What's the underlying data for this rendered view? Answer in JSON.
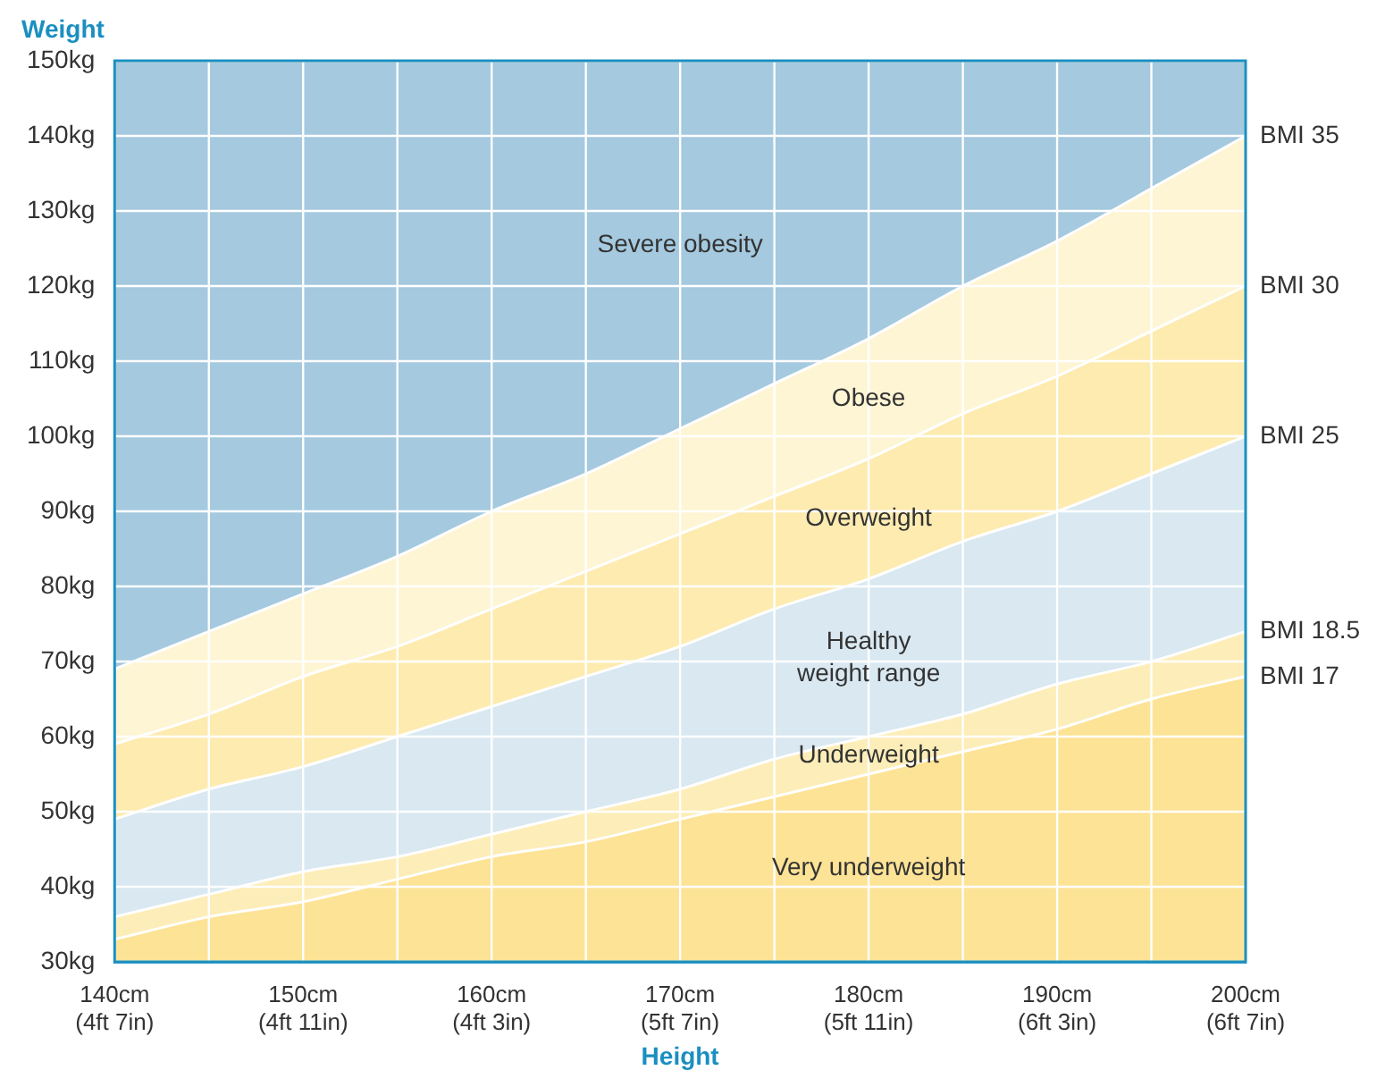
{
  "chart_data": {
    "type": "area",
    "ylabel": "Weight",
    "xlabel": "Height",
    "categories": [
      "140cm\n(4ft 7in)",
      null,
      "150cm\n(4ft 11in)",
      null,
      "160cm\n(4ft 3in)",
      null,
      "170cm\n(5ft 7in)",
      null,
      "180cm\n(5ft 11in)",
      null,
      "190cm\n(6ft 3in)",
      null,
      "200cm\n(6ft 7in)"
    ],
    "series": [
      {
        "name": "Very underweight",
        "color": "#fde396",
        "values": [
          33,
          36,
          38,
          41,
          44,
          46,
          49,
          52,
          55,
          58,
          61,
          65,
          68
        ]
      },
      {
        "name": "Underweight",
        "color": "#fdedb8",
        "values": [
          36,
          39,
          42,
          44,
          47,
          50,
          53,
          57,
          60,
          63,
          67,
          70,
          74
        ]
      },
      {
        "name": "Healthy weight range",
        "color": "#d9e8f1",
        "values": [
          49,
          53,
          56,
          60,
          64,
          68,
          72,
          77,
          81,
          86,
          90,
          95,
          100
        ]
      },
      {
        "name": "Overweight",
        "color": "#fdebb0",
        "values": [
          59,
          63,
          68,
          72,
          77,
          82,
          87,
          92,
          97,
          103,
          108,
          114,
          120
        ]
      },
      {
        "name": "Obese",
        "color": "#fef5d4",
        "values": [
          69,
          74,
          79,
          84,
          90,
          95,
          101,
          107,
          113,
          120,
          126,
          133,
          140
        ]
      },
      {
        "name": "Severe obesity",
        "color": "#a5c9df",
        "values": [
          150,
          150,
          150,
          150,
          150,
          150,
          150,
          150,
          150,
          150,
          150,
          150,
          150
        ]
      }
    ],
    "ylim": [
      30,
      150
    ],
    "yticks": [
      {
        "value": 30,
        "label": "30kg"
      },
      {
        "value": 40,
        "label": "40kg"
      },
      {
        "value": 50,
        "label": "50kg"
      },
      {
        "value": 60,
        "label": "60kg"
      },
      {
        "value": 70,
        "label": "70kg"
      },
      {
        "value": 80,
        "label": "80kg"
      },
      {
        "value": 90,
        "label": "90kg"
      },
      {
        "value": 100,
        "label": "100kg"
      },
      {
        "value": 110,
        "label": "110kg"
      },
      {
        "value": 120,
        "label": "120kg"
      },
      {
        "value": 130,
        "label": "130kg"
      },
      {
        "value": 140,
        "label": "140kg"
      },
      {
        "value": 150,
        "label": "150kg"
      }
    ],
    "grid": true,
    "annotations": [
      {
        "text": "BMI 35",
        "x": "200cm\n(6ft 7in)",
        "y": 140
      },
      {
        "text": "BMI 30",
        "x": "200cm\n(6ft 7in)",
        "y": 120
      },
      {
        "text": "BMI 25",
        "x": "200cm\n(6ft 7in)",
        "y": 100
      },
      {
        "text": "BMI 18.5",
        "x": "200cm\n(6ft 7in)",
        "y": 74
      },
      {
        "text": "BMI 17",
        "x": "200cm\n(6ft 7in)",
        "y": 68
      }
    ]
  }
}
